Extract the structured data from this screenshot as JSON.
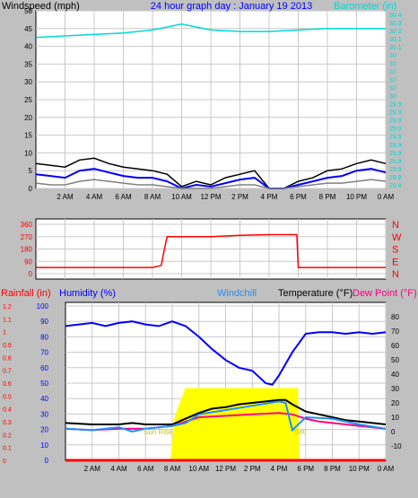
{
  "colors": {
    "background": "#c0c0c0",
    "plot_bg": "#ffffff",
    "grid": "#c8c8c8",
    "wind_avg": "#0000ff",
    "wind_gust": "#000000",
    "wind_low": "#808080",
    "barometer": "#00d8d8",
    "direction": "#ff0000",
    "humidity": "#0000ff",
    "temperature": "#000000",
    "dewpoint": "#ff0080",
    "windchill": "#1e90ff",
    "rain": "#ff0000",
    "solar": "#ffff00",
    "sun_label": "#c8c800"
  },
  "chart_data": [
    {
      "type": "line",
      "title": "24 hour graph day : January 19 2013",
      "ylabel_left": "Windspeed (mph)",
      "ylabel_right": "Barometer (in)",
      "ylim_left": [
        0,
        50
      ],
      "ylim_right": [
        29.8,
        30.4
      ],
      "left_ticks": [
        "0",
        "5",
        "10",
        "15",
        "20",
        "25",
        "30",
        "35",
        "40",
        "45",
        "50"
      ],
      "right_ticks": [
        "29.8",
        "29.8",
        "29.9",
        "29.9",
        "29.9",
        "29.9",
        "29.9",
        "29.9",
        "29.9",
        "29.9",
        "29.9",
        "30",
        "30",
        "30",
        "30",
        "30",
        "30",
        "30.1",
        "30.1",
        "30.2",
        "30.3",
        "30.4"
      ],
      "x_ticks": [
        "2 AM",
        "4 AM",
        "6 AM",
        "8 AM",
        "10 AM",
        "12 PM",
        "2 PM",
        "4 PM",
        "6 PM",
        "8 PM",
        "10 PM",
        "0 AM"
      ],
      "xlim_hours": [
        0,
        24
      ],
      "series": [
        {
          "key": "wind_gust",
          "hours": [
            0,
            1,
            2,
            3,
            4,
            5,
            6,
            7,
            8,
            9,
            10,
            11,
            12,
            13,
            14,
            15,
            16,
            17,
            18,
            19,
            20,
            21,
            22,
            23,
            24
          ],
          "values": [
            7,
            6.5,
            6,
            8,
            8.5,
            7,
            6,
            5.5,
            5,
            4,
            0.5,
            2,
            1,
            3,
            4,
            5,
            0,
            0,
            2,
            3,
            5,
            5.5,
            7,
            8,
            7
          ]
        },
        {
          "key": "wind_avg",
          "hours": [
            0,
            1,
            2,
            3,
            4,
            5,
            6,
            7,
            8,
            9,
            10,
            11,
            12,
            13,
            14,
            15,
            16,
            17,
            18,
            19,
            20,
            21,
            22,
            23,
            24
          ],
          "values": [
            4,
            3.5,
            3,
            5,
            5.5,
            4.5,
            3.5,
            3,
            3,
            2,
            0,
            1,
            0.5,
            1.5,
            2.5,
            3,
            0,
            0,
            1,
            2,
            3,
            3.5,
            5,
            5.5,
            4.5
          ]
        },
        {
          "key": "wind_low",
          "hours": [
            0,
            1,
            2,
            3,
            4,
            5,
            6,
            7,
            8,
            9,
            10,
            11,
            12,
            13,
            14,
            15,
            16,
            17,
            18,
            19,
            20,
            21,
            22,
            23,
            24
          ],
          "values": [
            1.5,
            1,
            1,
            2,
            2.5,
            2,
            1.5,
            1,
            1,
            0.5,
            0,
            0,
            0,
            0.5,
            1,
            1,
            0,
            0,
            0.5,
            1,
            1.5,
            1.5,
            2,
            2.5,
            2
          ]
        },
        {
          "key": "barometer",
          "hours": [
            0,
            2,
            4,
            6,
            8,
            9,
            10,
            11,
            12,
            14,
            16,
            18,
            20,
            22,
            24
          ],
          "values": [
            30.31,
            30.315,
            30.32,
            30.325,
            30.335,
            30.345,
            30.355,
            30.345,
            30.335,
            30.33,
            30.33,
            30.335,
            30.34,
            30.34,
            30.34
          ],
          "axis": "right"
        }
      ]
    },
    {
      "type": "line",
      "ylabel_left": "",
      "left_ticks": [
        "0",
        "90",
        "180",
        "270",
        "360"
      ],
      "right_ticks": [
        "N",
        "E",
        "S",
        "W",
        "N"
      ],
      "ylim": [
        0,
        360
      ],
      "xlim_hours": [
        0,
        24
      ],
      "series": [
        {
          "key": "direction",
          "hours": [
            0,
            4,
            8,
            8.6,
            8.8,
            9,
            12,
            14,
            16,
            17.9,
            18,
            20,
            24
          ],
          "values": [
            45,
            45,
            45,
            60,
            170,
            270,
            270,
            280,
            285,
            285,
            45,
            45,
            45
          ]
        }
      ]
    },
    {
      "type": "line",
      "labels": {
        "rainfall": "Rainfall (in)",
        "humidity": "Humidity (%)",
        "windchill": "Windchill",
        "temperature": "Temperature (°F)",
        "dewpoint": "Dew Point (°F)",
        "sunrise": "Sun Rise",
        "sunset": "Set"
      },
      "humidity_ticks": [
        "0",
        "10",
        "20",
        "30",
        "40",
        "50",
        "60",
        "70",
        "80",
        "90",
        "100"
      ],
      "rain_ticks": [
        "0",
        "0.1",
        "0.2",
        "0.3",
        "0.4",
        "0.5",
        "0.6",
        "0.7",
        "0.8",
        "0.9",
        "1",
        "1.1",
        "1.2"
      ],
      "temp_ticks": [
        "-10",
        "0",
        "10",
        "20",
        "30",
        "40",
        "50",
        "60",
        "70",
        "80"
      ],
      "ylim_humidity": [
        0,
        100
      ],
      "ylim_rain": [
        0,
        1.2
      ],
      "ylim_temp": [
        -20,
        90
      ],
      "xlim_hours": [
        0,
        24
      ],
      "sunrise_hour": 7.9,
      "sunset_hour": 17.5,
      "series": [
        {
          "key": "solar",
          "hours": [
            7.9,
            8.2,
            9,
            10,
            11,
            12,
            13,
            14,
            15,
            16,
            17,
            17.4,
            17.5
          ],
          "values": [
            -20,
            10,
            30,
            30,
            30,
            30,
            30,
            30,
            30,
            30,
            30,
            30,
            -20
          ],
          "axis": "temp"
        },
        {
          "key": "humidity",
          "hours": [
            0,
            1,
            2,
            3,
            4,
            5,
            6,
            7,
            8,
            9,
            10,
            11,
            12,
            13,
            14,
            15,
            15.5,
            16,
            17,
            18,
            19,
            20,
            21,
            22,
            23,
            24
          ],
          "values": [
            87,
            88,
            89,
            87,
            89,
            90,
            88,
            87,
            90,
            87,
            80,
            72,
            65,
            60,
            58,
            50,
            49,
            55,
            70,
            82,
            83,
            83,
            82,
            83,
            82,
            83
          ],
          "axis": "humidity"
        },
        {
          "key": "temperature",
          "hours": [
            0,
            2,
            4,
            5,
            6,
            7,
            8,
            9,
            10,
            11,
            12,
            13,
            14,
            15,
            16,
            16.5,
            17,
            18,
            19,
            20,
            21,
            22,
            23,
            24
          ],
          "values": [
            6,
            5,
            5,
            6,
            5,
            5,
            5,
            9,
            13,
            16,
            17,
            19,
            20,
            21,
            22,
            22,
            19,
            14,
            12,
            10,
            8,
            7,
            6,
            5
          ],
          "axis": "temp"
        },
        {
          "key": "dewpoint",
          "hours": [
            0,
            2,
            4,
            6,
            8,
            9,
            10,
            12,
            14,
            16,
            17,
            18,
            19,
            20,
            22,
            24
          ],
          "values": [
            2,
            1,
            2,
            2,
            4,
            7,
            10,
            11,
            12,
            13,
            12,
            9,
            7,
            6,
            4,
            2
          ],
          "axis": "temp"
        },
        {
          "key": "windchill",
          "hours": [
            0,
            2,
            4,
            5,
            6,
            7,
            8,
            9,
            10,
            12,
            14,
            16,
            16.5,
            17,
            18,
            20,
            22,
            24
          ],
          "values": [
            2,
            1,
            3,
            0,
            2,
            3,
            4,
            6,
            12,
            15,
            18,
            21,
            20,
            1,
            10,
            9,
            5,
            2
          ],
          "axis": "temp"
        },
        {
          "key": "rain",
          "hours": [
            0,
            24
          ],
          "values": [
            0,
            0
          ],
          "axis": "rain"
        }
      ]
    }
  ]
}
